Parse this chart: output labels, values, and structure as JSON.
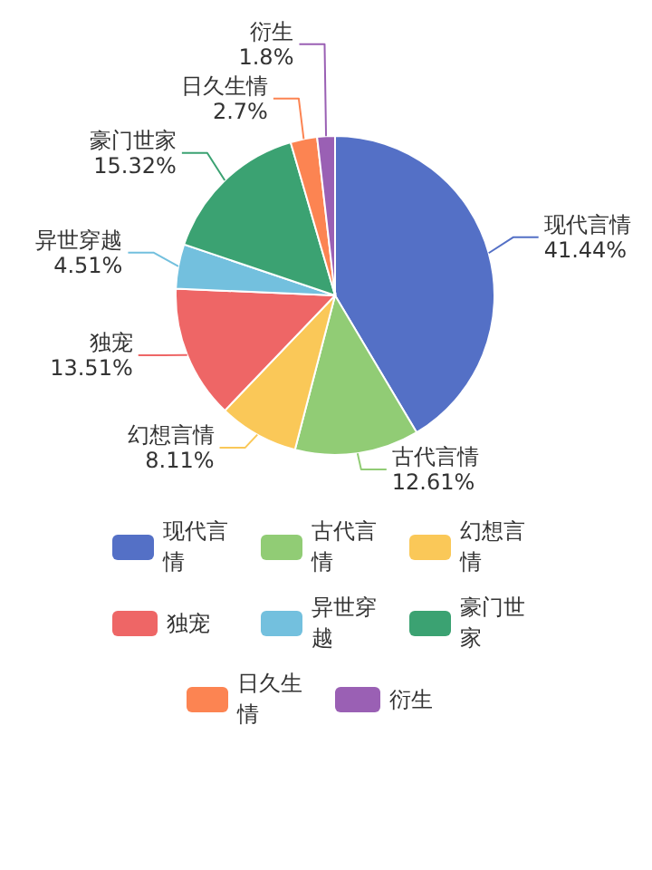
{
  "chart_data": {
    "type": "pie",
    "categories": [
      "现代言情",
      "古代言情",
      "幻想言情",
      "独宠",
      "异世穿越",
      "豪门世家",
      "日久生情",
      "衍生"
    ],
    "values": [
      41.44,
      12.61,
      8.11,
      13.51,
      4.51,
      15.32,
      2.7,
      1.8
    ],
    "colors": [
      "#5470c6",
      "#91cc75",
      "#fac858",
      "#ee6666",
      "#73c0de",
      "#3ba272",
      "#fc8452",
      "#9a60b4"
    ],
    "value_labels": [
      "41.44%",
      "12.61%",
      "8.11%",
      "13.51%",
      "4.51%",
      "15.32%",
      "2.7%",
      "1.8%"
    ],
    "legend": "bottom"
  }
}
